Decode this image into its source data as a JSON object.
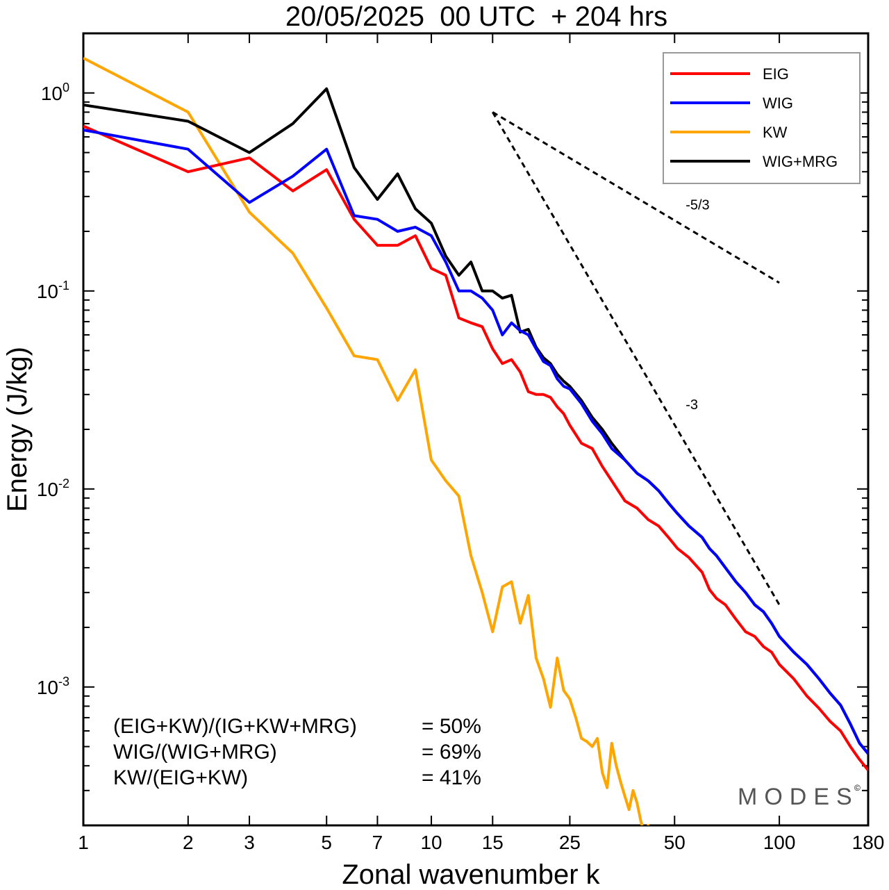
{
  "chart_data": {
    "type": "line",
    "title": "20/05/2025  00 UTC  + 204 hrs",
    "xlabel": "Zonal wavenumber k",
    "ylabel": "Energy (J/kg)",
    "x_scale": "log",
    "y_scale": "log",
    "xlim": [
      1,
      180
    ],
    "ylim": [
      0.0002,
      2.0
    ],
    "x_ticks": [
      1,
      2,
      3,
      5,
      7,
      10,
      15,
      25,
      50,
      100,
      180
    ],
    "y_ticks": [
      {
        "base": "10",
        "exp": "0",
        "value": 1
      },
      {
        "base": "10",
        "exp": "-1",
        "value": 0.1
      },
      {
        "base": "10",
        "exp": "-2",
        "value": 0.01
      },
      {
        "base": "10",
        "exp": "-3",
        "value": 0.001
      }
    ],
    "grid": false,
    "legend_position": "top-right",
    "series": [
      {
        "name": "EIG",
        "color": "#ff0000",
        "points": [
          [
            1,
            0.68
          ],
          [
            2,
            0.4
          ],
          [
            3,
            0.47
          ],
          [
            4,
            0.32
          ],
          [
            5,
            0.41
          ],
          [
            6,
            0.23
          ],
          [
            7,
            0.17
          ],
          [
            8,
            0.17
          ],
          [
            9,
            0.19
          ],
          [
            10,
            0.13
          ],
          [
            11,
            0.12
          ],
          [
            12,
            0.073
          ],
          [
            13,
            0.069
          ],
          [
            14,
            0.066
          ],
          [
            15,
            0.051
          ],
          [
            16,
            0.043
          ],
          [
            17,
            0.045
          ],
          [
            18,
            0.039
          ],
          [
            19,
            0.031
          ],
          [
            20,
            0.03
          ],
          [
            21,
            0.03
          ],
          [
            22,
            0.029
          ],
          [
            23,
            0.026
          ],
          [
            24,
            0.024
          ],
          [
            25,
            0.021
          ],
          [
            27,
            0.017
          ],
          [
            29,
            0.016
          ],
          [
            31,
            0.013
          ],
          [
            33,
            0.011
          ],
          [
            36,
            0.0087
          ],
          [
            39,
            0.008
          ],
          [
            42,
            0.007
          ],
          [
            45,
            0.0065
          ],
          [
            48,
            0.0057
          ],
          [
            51,
            0.005
          ],
          [
            55,
            0.0045
          ],
          [
            60,
            0.0038
          ],
          [
            63,
            0.0031
          ],
          [
            66,
            0.0028
          ],
          [
            70,
            0.0026
          ],
          [
            75,
            0.0022
          ],
          [
            80,
            0.0019
          ],
          [
            85,
            0.0018
          ],
          [
            90,
            0.0016
          ],
          [
            95,
            0.0015
          ],
          [
            100,
            0.0013
          ],
          [
            110,
            0.0011
          ],
          [
            120,
            0.0009
          ],
          [
            130,
            0.00078
          ],
          [
            140,
            0.00067
          ],
          [
            150,
            0.0006
          ],
          [
            160,
            0.0005
          ],
          [
            170,
            0.00043
          ],
          [
            180,
            0.00038
          ]
        ]
      },
      {
        "name": "WIG",
        "color": "#0000ff",
        "points": [
          [
            1,
            0.65
          ],
          [
            2,
            0.52
          ],
          [
            3,
            0.28
          ],
          [
            4,
            0.38
          ],
          [
            5,
            0.52
          ],
          [
            6,
            0.24
          ],
          [
            7,
            0.23
          ],
          [
            8,
            0.2
          ],
          [
            9,
            0.21
          ],
          [
            10,
            0.19
          ],
          [
            11,
            0.14
          ],
          [
            12,
            0.1
          ],
          [
            13,
            0.1
          ],
          [
            14,
            0.092
          ],
          [
            15,
            0.08
          ],
          [
            16,
            0.06
          ],
          [
            17,
            0.069
          ],
          [
            18,
            0.063
          ],
          [
            19,
            0.06
          ],
          [
            20,
            0.051
          ],
          [
            21,
            0.044
          ],
          [
            22,
            0.042
          ],
          [
            23,
            0.036
          ],
          [
            24,
            0.033
          ],
          [
            25,
            0.032
          ],
          [
            27,
            0.027
          ],
          [
            29,
            0.022
          ],
          [
            31,
            0.019
          ],
          [
            33,
            0.016
          ],
          [
            36,
            0.014
          ],
          [
            39,
            0.012
          ],
          [
            42,
            0.011
          ],
          [
            45,
            0.0098
          ],
          [
            48,
            0.0085
          ],
          [
            51,
            0.0075
          ],
          [
            55,
            0.0065
          ],
          [
            60,
            0.0057
          ],
          [
            63,
            0.005
          ],
          [
            66,
            0.0046
          ],
          [
            70,
            0.004
          ],
          [
            75,
            0.0034
          ],
          [
            80,
            0.003
          ],
          [
            85,
            0.0026
          ],
          [
            90,
            0.0024
          ],
          [
            95,
            0.0021
          ],
          [
            100,
            0.0018
          ],
          [
            110,
            0.0015
          ],
          [
            120,
            0.0013
          ],
          [
            130,
            0.0011
          ],
          [
            140,
            0.00093
          ],
          [
            150,
            0.00081
          ],
          [
            160,
            0.00065
          ],
          [
            170,
            0.00052
          ],
          [
            180,
            0.00046
          ]
        ]
      },
      {
        "name": "KW",
        "color": "#ffa500",
        "points": [
          [
            1,
            1.5
          ],
          [
            2,
            0.8
          ],
          [
            3,
            0.25
          ],
          [
            4,
            0.155
          ],
          [
            5,
            0.082
          ],
          [
            6,
            0.047
          ],
          [
            7,
            0.045
          ],
          [
            8,
            0.028
          ],
          [
            9,
            0.04
          ],
          [
            10,
            0.014
          ],
          [
            11,
            0.011
          ],
          [
            12,
            0.0092
          ],
          [
            13,
            0.0046
          ],
          [
            14,
            0.003
          ],
          [
            15,
            0.0019
          ],
          [
            16,
            0.0032
          ],
          [
            17,
            0.0034
          ],
          [
            18,
            0.0021
          ],
          [
            19,
            0.0029
          ],
          [
            20,
            0.0014
          ],
          [
            21,
            0.0011
          ],
          [
            22,
            0.00079
          ],
          [
            23,
            0.0014
          ],
          [
            24,
            0.00096
          ],
          [
            25,
            0.00087
          ],
          [
            26,
            0.0007
          ],
          [
            27,
            0.00055
          ],
          [
            28,
            0.00053
          ],
          [
            29,
            0.0005
          ],
          [
            30,
            0.00055
          ],
          [
            31,
            0.00037
          ],
          [
            32,
            0.00031
          ],
          [
            33,
            0.00052
          ],
          [
            34,
            0.0004
          ],
          [
            35,
            0.00033
          ],
          [
            36,
            0.00028
          ],
          [
            37,
            0.00024
          ],
          [
            38,
            0.0003
          ],
          [
            39,
            0.00026
          ],
          [
            40,
            0.00021
          ],
          [
            41,
            0.00018
          ],
          [
            42,
            0.0002
          ],
          [
            43,
            0.00018
          ]
        ]
      },
      {
        "name": "WIG+MRG",
        "color": "#000000",
        "points": [
          [
            1,
            0.87
          ],
          [
            2,
            0.72
          ],
          [
            3,
            0.5
          ],
          [
            4,
            0.7
          ],
          [
            5,
            1.05
          ],
          [
            6,
            0.42
          ],
          [
            7,
            0.29
          ],
          [
            8,
            0.39
          ],
          [
            9,
            0.26
          ],
          [
            10,
            0.22
          ],
          [
            11,
            0.15
          ],
          [
            12,
            0.12
          ],
          [
            13,
            0.14
          ],
          [
            14,
            0.1
          ],
          [
            15,
            0.1
          ],
          [
            16,
            0.092
          ],
          [
            17,
            0.095
          ],
          [
            18,
            0.062
          ],
          [
            19,
            0.064
          ],
          [
            20,
            0.052
          ],
          [
            21,
            0.046
          ],
          [
            22,
            0.043
          ],
          [
            23,
            0.038
          ],
          [
            24,
            0.035
          ],
          [
            25,
            0.033
          ],
          [
            27,
            0.028
          ],
          [
            29,
            0.023
          ],
          [
            31,
            0.02
          ],
          [
            33,
            0.017
          ],
          [
            36,
            0.014
          ],
          [
            39,
            0.012
          ],
          [
            42,
            0.011
          ],
          [
            45,
            0.0098
          ],
          [
            48,
            0.0085
          ],
          [
            51,
            0.0075
          ],
          [
            55,
            0.0065
          ],
          [
            60,
            0.0057
          ],
          [
            63,
            0.005
          ],
          [
            66,
            0.0046
          ],
          [
            70,
            0.004
          ],
          [
            75,
            0.0034
          ],
          [
            80,
            0.003
          ],
          [
            85,
            0.0026
          ],
          [
            90,
            0.0024
          ],
          [
            95,
            0.0021
          ],
          [
            100,
            0.0018
          ],
          [
            110,
            0.0015
          ],
          [
            120,
            0.0013
          ],
          [
            130,
            0.0011
          ],
          [
            140,
            0.00093
          ],
          [
            150,
            0.00081
          ],
          [
            160,
            0.00065
          ],
          [
            170,
            0.00052
          ],
          [
            180,
            0.00046
          ]
        ]
      }
    ],
    "reference_slopes": [
      {
        "label": "-5/3",
        "points": [
          [
            15,
            0.8
          ],
          [
            100,
            0.11
          ]
        ]
      },
      {
        "label": "-3",
        "points": [
          [
            15,
            0.8
          ],
          [
            100,
            0.0026
          ]
        ]
      }
    ],
    "annotations": [
      {
        "label": "(EIG+KW)/(IG+KW+MRG)",
        "value": "= 50%"
      },
      {
        "label": "WIG/(WIG+MRG)",
        "value": "= 69%"
      },
      {
        "label": "KW/(EIG+KW)",
        "value": "= 41%"
      }
    ],
    "watermark": "MODES",
    "watermark_symbol": "©"
  }
}
